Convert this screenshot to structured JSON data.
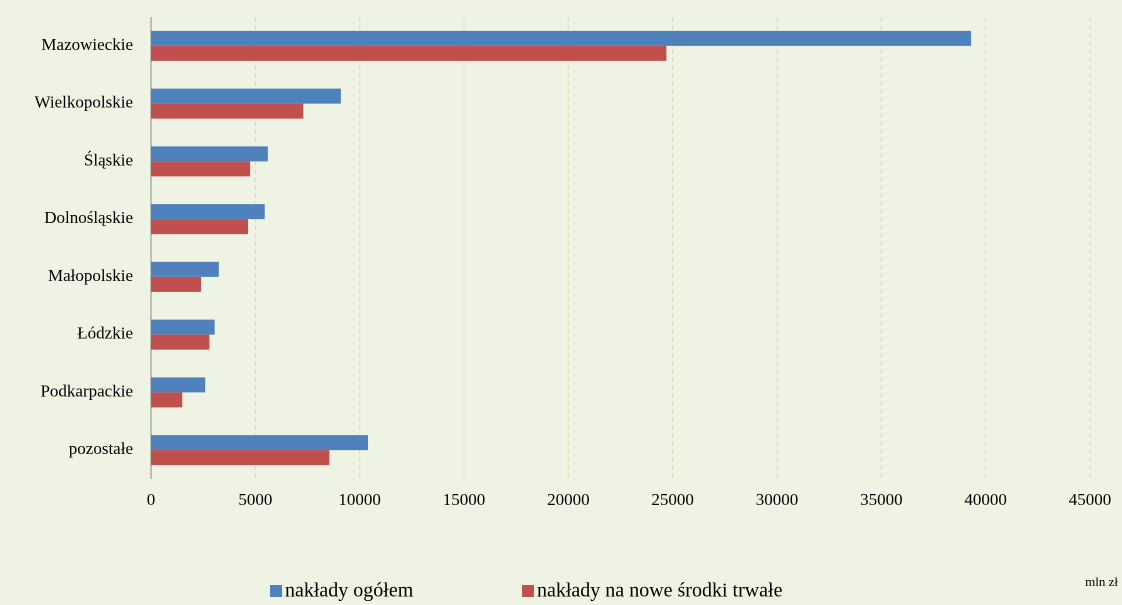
{
  "chart_data": {
    "type": "hbar",
    "categories": [
      "Mazowieckie",
      "Wielkopolskie",
      "Śląskie",
      "Dolnośląskie",
      "Małopolskie",
      "Łódzkie",
      "Podkarpackie",
      "pozostałe"
    ],
    "series": [
      {
        "name": "nakłady ogółem",
        "color": "#4f81bd",
        "values": [
          39300,
          9100,
          5600,
          5450,
          3250,
          3050,
          2600,
          10400
        ]
      },
      {
        "name": "nakłady na nowe środki trwałe",
        "color": "#c0504d",
        "values": [
          24700,
          7300,
          4750,
          4650,
          2400,
          2800,
          1500,
          8550
        ]
      }
    ],
    "xlim": [
      0,
      45000
    ],
    "xticks": [
      0,
      5000,
      10000,
      15000,
      20000,
      25000,
      30000,
      35000,
      40000,
      45000
    ],
    "x_unit": "mln zł",
    "grid": true
  }
}
